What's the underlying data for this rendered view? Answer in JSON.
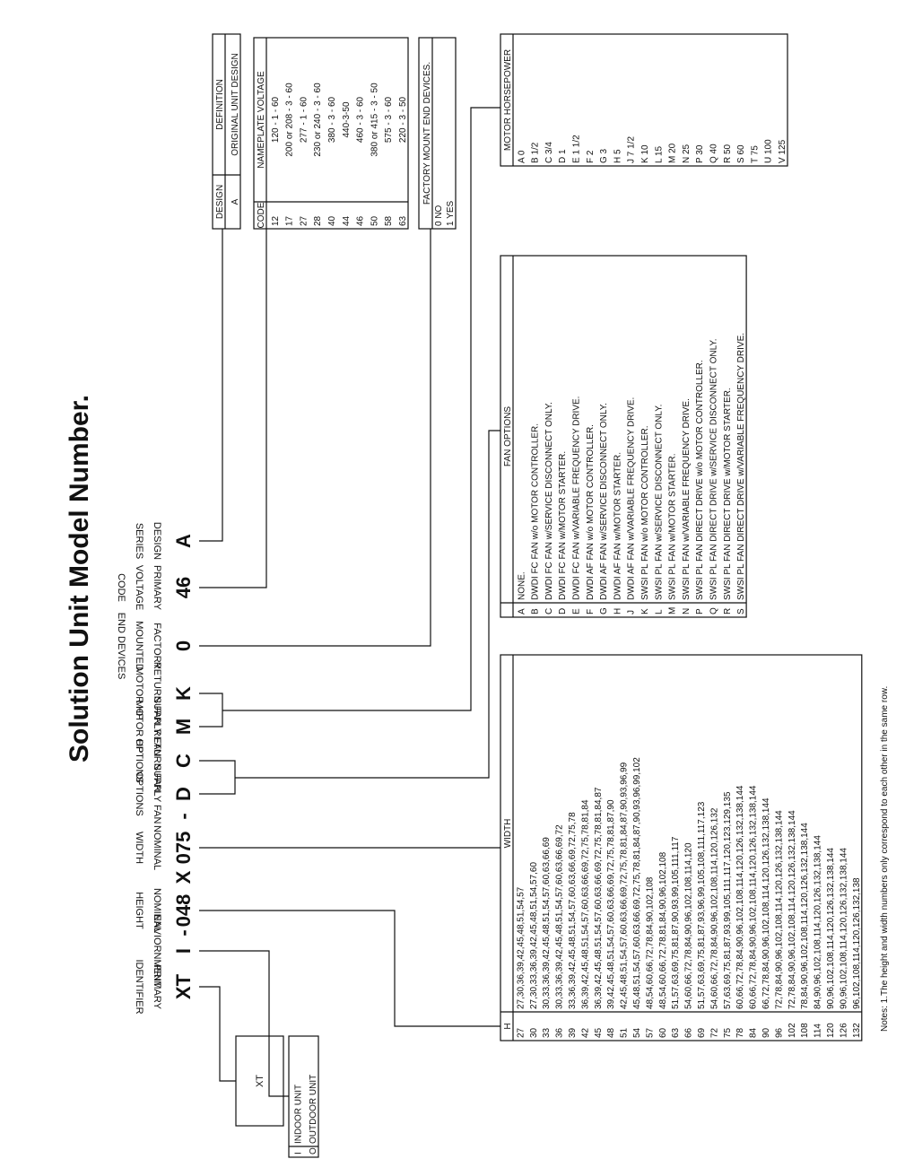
{
  "title": "Solution Unit Model Number.",
  "model_code": [
    {
      "code": "XT",
      "label": [
        "PRIMARY",
        "IDENTIFIER"
      ]
    },
    {
      "code": "I",
      "label": [
        "ENVIORNMENT"
      ]
    },
    {
      "code": "-"
    },
    {
      "code": "048",
      "label": [
        "NOMINAL",
        "HEIGHT"
      ]
    },
    {
      "code": "X"
    },
    {
      "code": "075",
      "label": [
        "NOMINAL",
        "WIDTH"
      ]
    },
    {
      "code": "-"
    },
    {
      "code": "D",
      "label": [
        "SUPPLY FAN",
        "OPTIONS"
      ]
    },
    {
      "code": "C",
      "label": [
        "RETURN FAN",
        "OPTIONS"
      ]
    },
    {
      "code": "M",
      "label": [
        "SUPPLY FAN",
        "MOTOR HP"
      ]
    },
    {
      "code": "K",
      "label": [
        "RETURN FAN",
        "MOTOR HP"
      ]
    },
    {
      "code": "0",
      "label": [
        "FACTORY",
        "MOUNTED",
        "END DEVICES"
      ]
    },
    {
      "code": "46",
      "label": [
        "PRIMARY",
        "VOLTAGE",
        "CODE"
      ]
    },
    {
      "code": "A",
      "label": [
        "DESIGN",
        "SERIES"
      ]
    }
  ],
  "design_table": {
    "headers": [
      "DESIGN",
      "DEFINITION"
    ],
    "rows": [
      [
        "A",
        "ORIGINAL UNIT DESIGN"
      ]
    ]
  },
  "voltage_table": {
    "headers": [
      "CODE",
      "NAMEPLATE VOLTAGE"
    ],
    "rows": [
      [
        "12",
        "120 - 1 - 60"
      ],
      [
        "17",
        "200 or 208 - 3 - 60"
      ],
      [
        "27",
        "277 - 1 - 60"
      ],
      [
        "28",
        "230 or 240 - 3 - 60"
      ],
      [
        "40",
        "380 - 3 - 60"
      ],
      [
        "44",
        "440-3-50"
      ],
      [
        "46",
        "460 - 3 - 60"
      ],
      [
        "50",
        "380 or 415 - 3 - 50"
      ],
      [
        "58",
        "575 - 3 - 60"
      ],
      [
        "63",
        "220 - 3 - 50"
      ]
    ]
  },
  "end_devices_table": {
    "headers": [
      "FACTORY MOUNT END DEVICES."
    ],
    "rows": [
      [
        "0 NO"
      ],
      [
        "1 YES"
      ]
    ]
  },
  "motor_hp_table": {
    "headers": [
      "MOTOR HORSEPOWER"
    ],
    "rows": [
      [
        "A 0"
      ],
      [
        "B 1/2"
      ],
      [
        "C 3/4"
      ],
      [
        "D 1"
      ],
      [
        "E 1 1/2"
      ],
      [
        "F 2"
      ],
      [
        "G 3"
      ],
      [
        "H 5"
      ],
      [
        "J 7 1/2"
      ],
      [
        "K 10"
      ],
      [
        "L 15"
      ],
      [
        "M 20"
      ],
      [
        "N 25"
      ],
      [
        "P 30"
      ],
      [
        "Q 40"
      ],
      [
        "R 50"
      ],
      [
        "S 60"
      ],
      [
        "T 75"
      ],
      [
        "U 100"
      ],
      [
        "V 125"
      ]
    ]
  },
  "fan_options_table": {
    "headers": [
      "FAN OPTIONS"
    ],
    "rows": [
      [
        "A",
        "NONE."
      ],
      [
        "B",
        "DWDI FC FAN w/o MOTOR CONTROLLER."
      ],
      [
        "C",
        "DWDI FC FAN w/SERVICE DISCONNECT ONLY."
      ],
      [
        "D",
        "DWDI FC FAN w/MOTOR STARTER."
      ],
      [
        "E",
        "DWDI FC FAN w/VARIABLE FREQUENCY DRIVE."
      ],
      [
        "F",
        "DWDI AF FAN w/o MOTOR CONTROLLER."
      ],
      [
        "G",
        "DWDI AF FAN w/SERVICE DISCONNECT ONLY."
      ],
      [
        "H",
        "DWDI AF FAN w/MOTOR STARTER."
      ],
      [
        "J",
        "DWDI AF FAN w/VARIABLE FREQUENCY DRIVE."
      ],
      [
        "K",
        "SWSI PL FAN w/o MOTOR CONTROLLER."
      ],
      [
        "L",
        "SWSI PL FAN w/SERVICE DISCONNECT ONLY."
      ],
      [
        "M",
        "SWSI PL FAN w/MOTOR STARTER."
      ],
      [
        "N",
        "SWSI PL FAN w/VARIABLE FREQUENCY DRIVE."
      ],
      [
        "P",
        "SWSI PL FAN DIRECT DRIVE w/o MOTOR CONTROLLER."
      ],
      [
        "Q",
        "SWSI PL FAN DIRECT DRIVE w/SERVICE DISCONNECT ONLY."
      ],
      [
        "R",
        "SWSI PL FAN DIRECT DRIVE w/MOTOR STARTER."
      ],
      [
        "S",
        "SWSI PL FAN DIRECT DRIVE w/VARIABLE FREQUENCY DRIVE."
      ]
    ]
  },
  "size_table": {
    "headers": [
      "H",
      "WIDTH"
    ],
    "rows": [
      [
        "27",
        "27,30,36,39,42,45,48,51,54,57"
      ],
      [
        "30",
        "27,30,33,36,39,42,45,48,51,54,57,60"
      ],
      [
        "33",
        "30,33,36,39,42,45,48,51,54,57,60,63,66,69"
      ],
      [
        "36",
        "30,33,36,39,42,45,48,51,54,57,60,63,66,69,72"
      ],
      [
        "39",
        "33,36,39,42,45,48,51,54,57,60,63,66,69,72,75,78"
      ],
      [
        "42",
        "36,39,42,45,48,51,54,57,60,63,66,69,72,75,78,81,84"
      ],
      [
        "45",
        "36,39,42,45,48,51,54,57,60,63,66,69,72,75,78,81,84,87"
      ],
      [
        "48",
        "39,42,45,48,51,54,57,60,63,66,69,72,75,78,81,87,90"
      ],
      [
        "51",
        "42,45,48,51,54,57,60,63,66,69,72,75,78,81,84,87,90,93,96,99"
      ],
      [
        "54",
        "45,48,51,54,57,60,63,66,69,72,75,78,81,84,87,90,93,96,99,102"
      ],
      [
        "57",
        "48,54,60,66,72,78,84,90,102,108"
      ],
      [
        "60",
        "48,54,60,66,72,78,81,84,90,96,102,108"
      ],
      [
        "63",
        "51,57,63,69,75,81,87,90,93,99,105,111,117"
      ],
      [
        "66",
        "54,60,66,72,78,84,90,96,102,108,114,120"
      ],
      [
        "69",
        "51,57,63,69,75,81,87,93,96,99,105,108,111,117,123"
      ],
      [
        "72",
        "54,60,66,72,78,84,90,96,102,108,114,120,126,132"
      ],
      [
        "75",
        "57,63,69,75,81,87,93,99,105,111,117,120,123,129,135"
      ],
      [
        "78",
        "60,66,72,78,84,90,96,102,108,114,120,126,132,138,144"
      ],
      [
        "84",
        "60,66,72,78,84,90,96,102,108,114,120,126,132,138,144"
      ],
      [
        "90",
        "66,72,78,84,90,96,102,108,114,120,126,132,138,144"
      ],
      [
        "96",
        "72,78,84,90,96,102,108,114,120,126,132,138,144"
      ],
      [
        "102",
        "72,78,84,90,96,102,108,114,120,126,132,138,144"
      ],
      [
        "108",
        "78,84,90,96,102,108,114,120,126,132,138,144"
      ],
      [
        "114",
        "84,90,96,102,108,114,120,126,132,138,144"
      ],
      [
        "120",
        "90,96,102,108,114,120,126,132,138,144"
      ],
      [
        "126",
        "90,96,102,108,114,120,126,132,138,144"
      ],
      [
        "132",
        "96,102,108,114,120,126,132,138"
      ]
    ]
  },
  "environment_table": {
    "rows": [
      [
        "I",
        "INDOOR UNIT"
      ],
      [
        "O",
        "OUTDOOR UNIT"
      ]
    ]
  },
  "identifier_box": "XT",
  "notes": "Notes: 1.The height and width numbers only correspond to each other in the same row."
}
